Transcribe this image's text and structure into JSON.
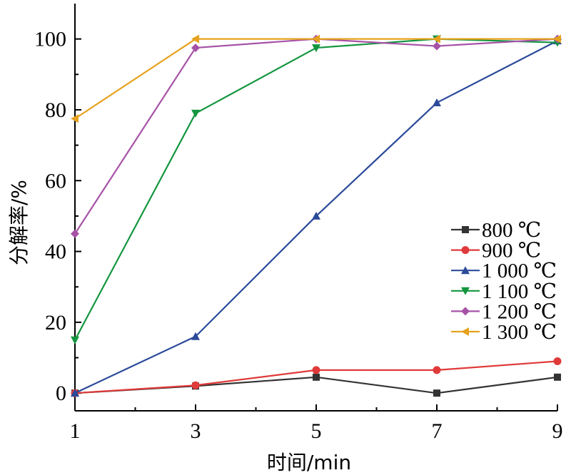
{
  "chart_data": {
    "type": "line",
    "title": "",
    "xlabel": "时间/min",
    "ylabel": "分解率/%",
    "xlim": [
      1,
      9
    ],
    "ylim": [
      -5,
      110
    ],
    "x_ticks": [
      1,
      3,
      5,
      7,
      9
    ],
    "y_ticks": [
      0,
      20,
      40,
      60,
      80,
      100
    ],
    "grid": false,
    "legend_position": "center-right",
    "x": [
      1,
      3,
      5,
      7,
      9
    ],
    "series": [
      {
        "name": "800 ℃",
        "color": "#333333",
        "marker": "square",
        "values": [
          0,
          2,
          4.5,
          0,
          4.5
        ]
      },
      {
        "name": "900 ℃",
        "color": "#e03a3a",
        "marker": "circle",
        "values": [
          0,
          2.2,
          6.5,
          6.5,
          9
        ]
      },
      {
        "name": "1 000 ℃",
        "color": "#2b4a9a",
        "marker": "triangle-up",
        "values": [
          0,
          16,
          50,
          82,
          99.5
        ]
      },
      {
        "name": "1 100 ℃",
        "color": "#13963f",
        "marker": "triangle-down",
        "values": [
          15,
          79,
          97.5,
          100,
          99
        ]
      },
      {
        "name": "1 200 ℃",
        "color": "#a652a6",
        "marker": "diamond",
        "values": [
          45,
          97.5,
          100,
          98,
          100
        ]
      },
      {
        "name": "1 300 ℃",
        "color": "#e6a21e",
        "marker": "triangle-left",
        "values": [
          77.5,
          100,
          100,
          100,
          100
        ]
      }
    ]
  }
}
